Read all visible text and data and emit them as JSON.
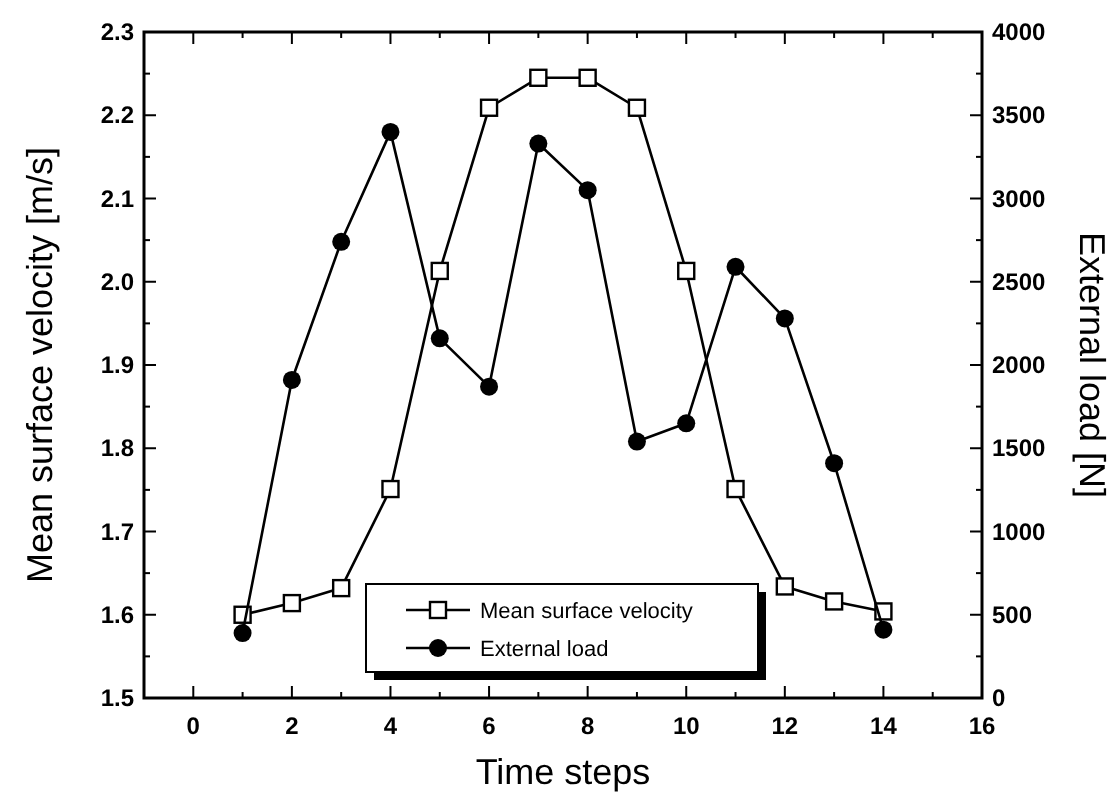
{
  "chart_data": {
    "type": "line",
    "xlabel": "Time steps",
    "ylabel": "Mean surface velocity [m/s]",
    "y2label": "External load [N]",
    "x": [
      1,
      2,
      3,
      4,
      5,
      6,
      7,
      8,
      9,
      10,
      11,
      12,
      13,
      14
    ],
    "series": [
      {
        "name": "Mean surface velocity",
        "color": "#000000",
        "marker": "square",
        "values": [
          1.6,
          1.614,
          1.632,
          1.751,
          2.013,
          2.209,
          2.245,
          2.245,
          2.209,
          2.013,
          1.751,
          1.634,
          1.616,
          1.604
        ]
      },
      {
        "name": "External load",
        "color": "#000000",
        "marker": "circle",
        "axis": "y2",
        "values": [
          390,
          1910,
          2740,
          3400,
          2160,
          1870,
          3330,
          3050,
          1540,
          1650,
          2590,
          2280,
          1410,
          410
        ]
      }
    ],
    "xlim": [
      -1,
      16
    ],
    "xticks": [
      {
        "value": -1,
        "label": null
      },
      0,
      {
        "value": 1,
        "label": null
      },
      2,
      {
        "value": 3,
        "label": null
      },
      4,
      {
        "value": 5,
        "label": null
      },
      6,
      {
        "value": 7,
        "label": null
      },
      8,
      {
        "value": 9,
        "label": null
      },
      10,
      {
        "value": 11,
        "label": null
      },
      12,
      {
        "value": 13,
        "label": null
      },
      14,
      {
        "value": 15,
        "label": null
      },
      16
    ],
    "ylim": [
      1.5,
      2.3
    ],
    "yticks": [
      {
        "value": 1.5,
        "label": "1.5"
      },
      {
        "value": 1.55,
        "label": null
      },
      {
        "value": 1.6,
        "label": "1.6"
      },
      {
        "value": 1.65,
        "label": null
      },
      {
        "value": 1.7,
        "label": "1.7"
      },
      {
        "value": 1.75,
        "label": null
      },
      {
        "value": 1.8,
        "label": "1.8"
      },
      {
        "value": 1.85,
        "label": null
      },
      {
        "value": 1.9,
        "label": "1.9"
      },
      {
        "value": 1.95,
        "label": null
      },
      {
        "value": 2.0,
        "label": "2.0"
      },
      {
        "value": 2.05,
        "label": null
      },
      {
        "value": 2.1,
        "label": "2.1"
      },
      {
        "value": 2.15,
        "label": null
      },
      {
        "value": 2.2,
        "label": "2.2"
      },
      {
        "value": 2.25,
        "label": null
      },
      {
        "value": 2.3,
        "label": "2.3"
      }
    ],
    "y2lim": [
      0,
      4000
    ],
    "y2ticks": [
      0,
      {
        "value": 250,
        "label": null
      },
      500,
      {
        "value": 750,
        "label": null
      },
      1000,
      {
        "value": 1250,
        "label": null
      },
      1500,
      {
        "value": 1750,
        "label": null
      },
      2000,
      {
        "value": 2250,
        "label": null
      },
      2500,
      {
        "value": 2750,
        "label": null
      },
      3000,
      {
        "value": 3250,
        "label": null
      },
      3500,
      {
        "value": 3750,
        "label": null
      },
      4000
    ],
    "legend": "bottom",
    "line_style": "solid"
  }
}
